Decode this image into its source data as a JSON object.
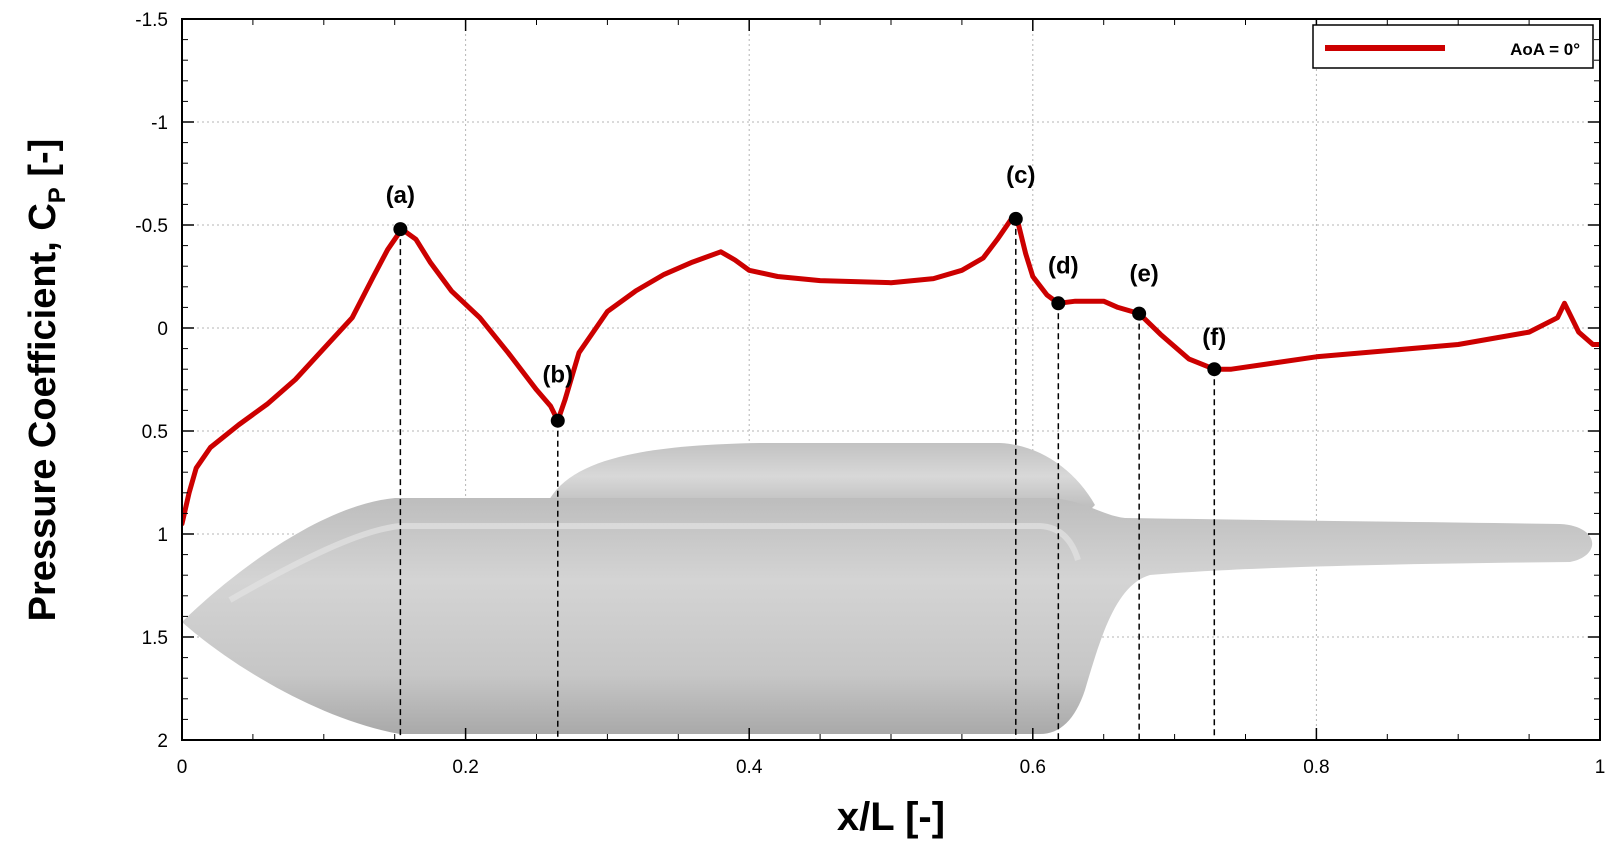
{
  "chart_data": {
    "type": "line",
    "title": "",
    "xlabel": "x/L [-]",
    "ylabel": "Pressure Coefficient, C",
    "ylabel_subscript": "P",
    "ylabel_suffix": " [-]",
    "xlim": [
      0,
      1
    ],
    "ylim": [
      2,
      -1.5
    ],
    "y_inverted": true,
    "grid": true,
    "legend_position": "top-right",
    "x_ticks": [
      0,
      0.2,
      0.4,
      0.6,
      0.8,
      1
    ],
    "x_tick_labels": [
      "0",
      "0.2",
      "0.4",
      "0.6",
      "0.8",
      "1"
    ],
    "y_ticks": [
      -1.5,
      -1,
      -0.5,
      0,
      0.5,
      1,
      1.5,
      2
    ],
    "y_tick_labels": [
      "-1.5",
      "-1",
      "-0.5",
      "0",
      "0.5",
      "1",
      "1.5",
      "2"
    ],
    "series": [
      {
        "name": "AoA = 0°",
        "color": "#cc0000",
        "x": [
          0,
          0.005,
          0.01,
          0.02,
          0.04,
          0.06,
          0.08,
          0.1,
          0.12,
          0.135,
          0.145,
          0.155,
          0.165,
          0.175,
          0.19,
          0.21,
          0.23,
          0.25,
          0.26,
          0.265,
          0.27,
          0.28,
          0.3,
          0.32,
          0.34,
          0.36,
          0.38,
          0.39,
          0.4,
          0.42,
          0.45,
          0.5,
          0.53,
          0.55,
          0.565,
          0.575,
          0.585,
          0.59,
          0.595,
          0.6,
          0.61,
          0.618,
          0.63,
          0.65,
          0.66,
          0.67,
          0.675,
          0.69,
          0.71,
          0.728,
          0.74,
          0.8,
          0.9,
          0.95,
          0.97,
          0.975,
          0.985,
          0.995,
          1.0
        ],
        "y": [
          0.95,
          0.8,
          0.68,
          0.58,
          0.47,
          0.37,
          0.25,
          0.1,
          -0.05,
          -0.25,
          -0.38,
          -0.48,
          -0.43,
          -0.32,
          -0.18,
          -0.05,
          0.12,
          0.3,
          0.38,
          0.45,
          0.35,
          0.12,
          -0.08,
          -0.18,
          -0.26,
          -0.32,
          -0.37,
          -0.33,
          -0.28,
          -0.25,
          -0.23,
          -0.22,
          -0.24,
          -0.28,
          -0.34,
          -0.43,
          -0.53,
          -0.5,
          -0.36,
          -0.25,
          -0.16,
          -0.12,
          -0.13,
          -0.13,
          -0.1,
          -0.08,
          -0.07,
          0.03,
          0.15,
          0.2,
          0.2,
          0.14,
          0.08,
          0.02,
          -0.05,
          -0.12,
          0.02,
          0.08,
          0.08
        ]
      }
    ],
    "annotations": [
      {
        "label": "(a)",
        "x": 0.154,
        "y": -0.48
      },
      {
        "label": "(b)",
        "x": 0.265,
        "y": 0.45
      },
      {
        "label": "(c)",
        "x": 0.588,
        "y": -0.53
      },
      {
        "label": "(d)",
        "x": 0.618,
        "y": -0.12
      },
      {
        "label": "(e)",
        "x": 0.675,
        "y": -0.07
      },
      {
        "label": "(f)",
        "x": 0.728,
        "y": 0.2
      }
    ]
  }
}
